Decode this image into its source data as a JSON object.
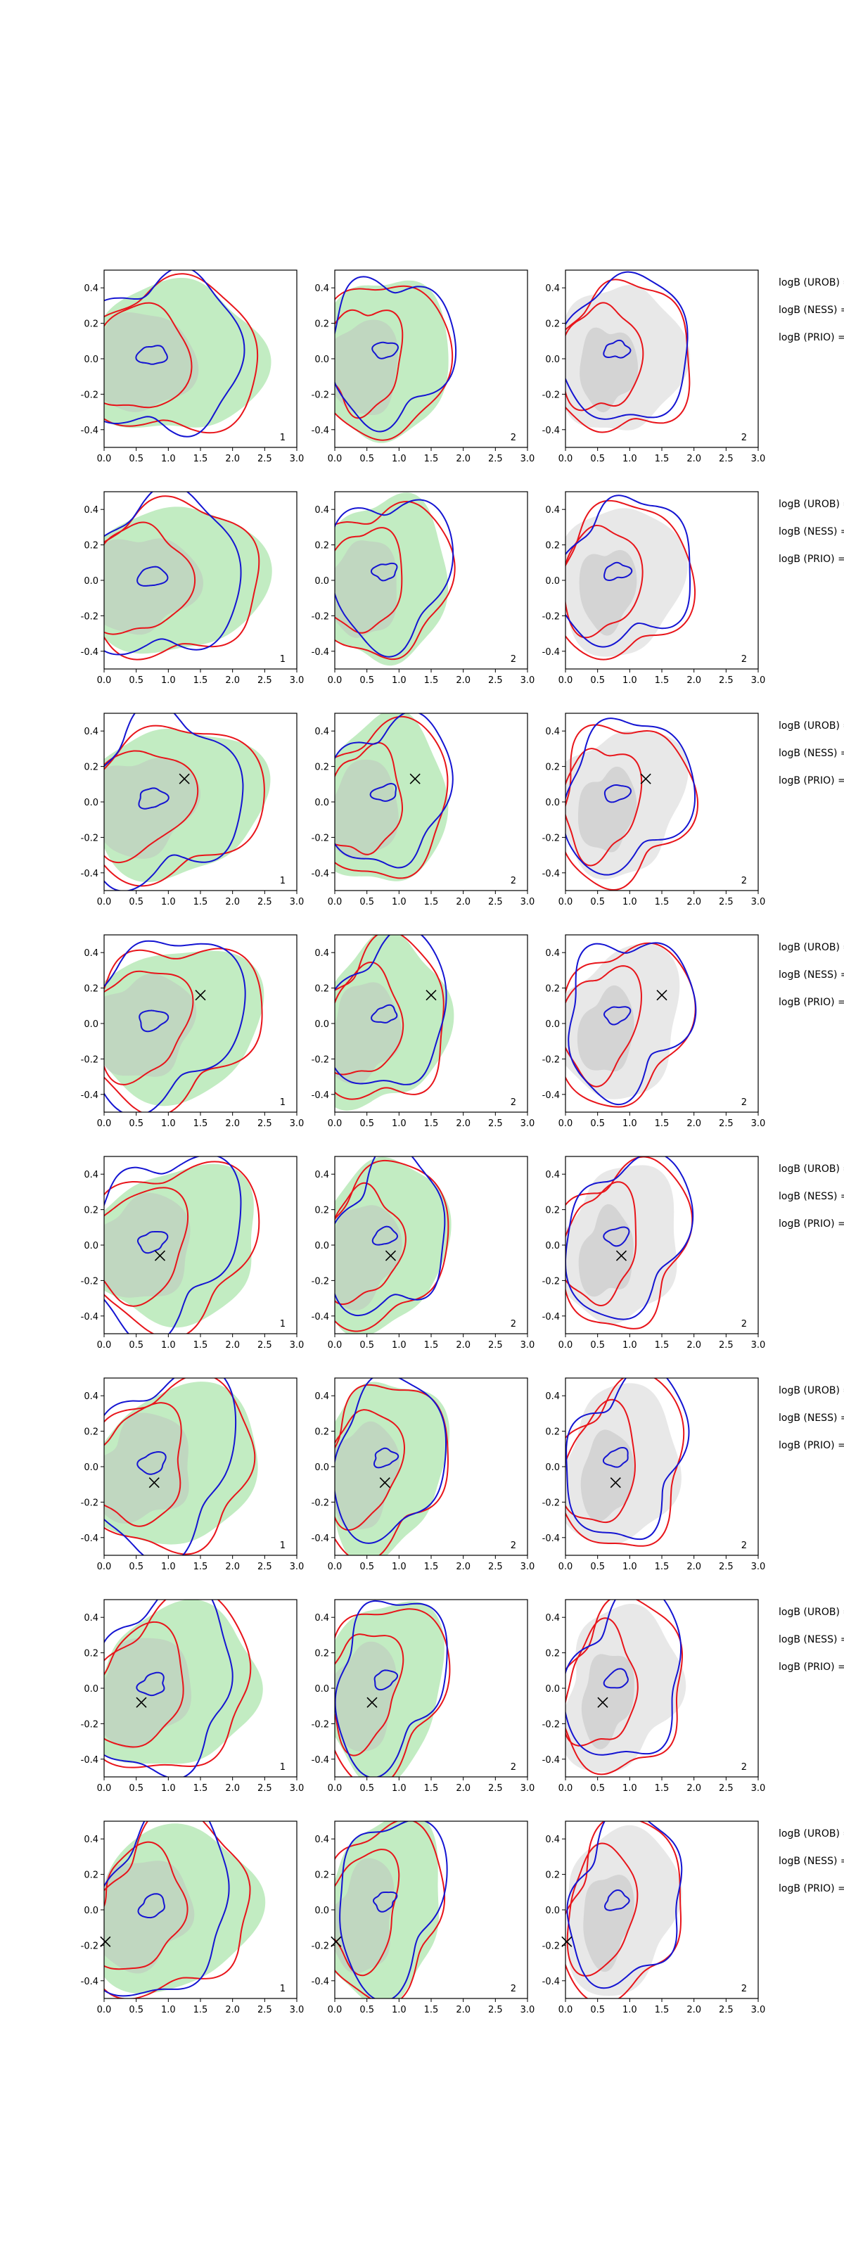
{
  "figure": {
    "rows": 8,
    "cols": 3,
    "x_ticks": [
      "0.0",
      "0.5",
      "1.0",
      "1.5",
      "2.0",
      "2.5",
      "3.0"
    ],
    "y_ticks": [
      "0.4",
      "0.2",
      "0.0",
      "-0.2",
      "-0.4"
    ],
    "side_labels": [
      "logB (UROB) =",
      "logB (NESS) =",
      "logB (PRIO) ="
    ],
    "colors": {
      "green_fill": "#c2ecc2",
      "grey_fill": "#e8e8e8",
      "grey_inner": "#d4d4d4",
      "red_line": "#e8141a",
      "blue_line": "#1414d2",
      "axes": "#000000"
    }
  },
  "chart_data": {
    "type": "contour",
    "xlim": [
      0,
      3
    ],
    "ylim": [
      -0.5,
      0.5
    ],
    "grid": false,
    "columns": [
      {
        "corner_label": "1",
        "filled": "green + grey",
        "lines": [
          "red",
          "blue"
        ]
      },
      {
        "corner_label": "2",
        "filled": "green + grey",
        "lines": [
          "red",
          "blue"
        ]
      },
      {
        "corner_label": "2",
        "filled": "grey",
        "lines": [
          "red",
          "blue"
        ]
      }
    ],
    "markers": [
      null,
      null,
      {
        "x": 1.25,
        "y": 0.13
      },
      {
        "x": 1.5,
        "y": 0.16
      },
      {
        "x": 0.87,
        "y": -0.06
      },
      {
        "x": 0.78,
        "y": -0.09
      },
      {
        "x": 0.58,
        "y": -0.08
      },
      {
        "x": 0.02,
        "y": -0.18
      }
    ]
  }
}
